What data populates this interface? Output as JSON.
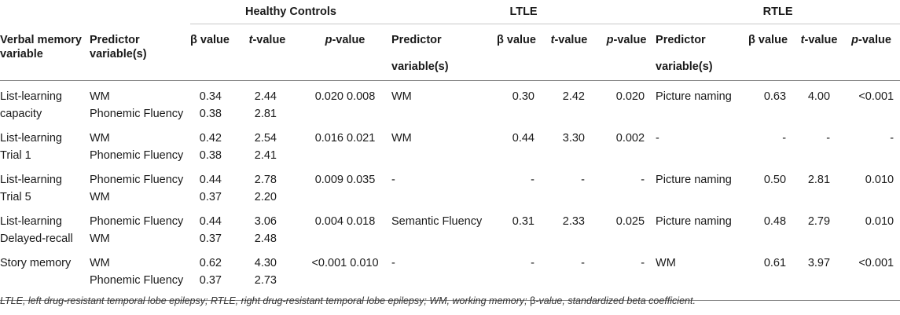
{
  "groups": {
    "hc": "Healthy Controls",
    "ltle": "LTLE",
    "rtle": "RTLE"
  },
  "headers": {
    "verbal_memory_variable": "Verbal memory variable",
    "predictor_variables": "Predictor variable(s)",
    "predictor": "Predictor",
    "variables": "variable(s)",
    "beta": "β value",
    "t": "t",
    "t_suffix": "-value",
    "p": "p",
    "p_suffix": "-value"
  },
  "rows": [
    {
      "variable_1": "List-learning",
      "variable_2": "capacity",
      "hc_pred_1": "WM",
      "hc_pred_2": "Phonemic Fluency",
      "hc_beta_1": "0.34",
      "hc_beta_2": "0.38",
      "hc_t_1": "2.44",
      "hc_t_2": "2.81",
      "hc_p": "0.020 0.008",
      "ltle_pred": "WM",
      "ltle_beta": "0.30",
      "ltle_t": "2.42",
      "ltle_p": "0.020",
      "rtle_pred": "Picture naming",
      "rtle_beta": "0.63",
      "rtle_t": "4.00",
      "rtle_p": "<0.001"
    },
    {
      "variable_1": "List-learning",
      "variable_2": "Trial 1",
      "hc_pred_1": "WM",
      "hc_pred_2": "Phonemic Fluency",
      "hc_beta_1": "0.42",
      "hc_beta_2": "0.38",
      "hc_t_1": "2.54",
      "hc_t_2": "2.41",
      "hc_p": "0.016 0.021",
      "ltle_pred": "WM",
      "ltle_beta": "0.44",
      "ltle_t": "3.30",
      "ltle_p": "0.002",
      "rtle_pred": "-",
      "rtle_beta": "-",
      "rtle_t": "-",
      "rtle_p": "-"
    },
    {
      "variable_1": "List-learning",
      "variable_2": "Trial 5",
      "hc_pred_1": "Phonemic Fluency",
      "hc_pred_2": "WM",
      "hc_beta_1": "0.44",
      "hc_beta_2": "0.37",
      "hc_t_1": "2.78",
      "hc_t_2": "2.20",
      "hc_p": "0.009 0.035",
      "ltle_pred": "-",
      "ltle_beta": "-",
      "ltle_t": "-",
      "ltle_p": "-",
      "rtle_pred": "Picture naming",
      "rtle_beta": "0.50",
      "rtle_t": "2.81",
      "rtle_p": "0.010"
    },
    {
      "variable_1": "List-learning",
      "variable_2": "Delayed-recall",
      "hc_pred_1": "Phonemic Fluency",
      "hc_pred_2": "WM",
      "hc_beta_1": "0.44",
      "hc_beta_2": "0.37",
      "hc_t_1": "3.06",
      "hc_t_2": "2.48",
      "hc_p": "0.004 0.018",
      "ltle_pred": "Semantic Fluency",
      "ltle_beta": "0.31",
      "ltle_t": "2.33",
      "ltle_p": "0.025",
      "rtle_pred": "Picture naming",
      "rtle_beta": "0.48",
      "rtle_t": "2.79",
      "rtle_p": "0.010"
    },
    {
      "variable_1": "Story memory",
      "variable_2": "",
      "hc_pred_1": "WM",
      "hc_pred_2": "Phonemic Fluency",
      "hc_beta_1": "0.62",
      "hc_beta_2": "0.37",
      "hc_t_1": "4.30",
      "hc_t_2": "2.73",
      "hc_p": "<0.001 0.010",
      "ltle_pred": "-",
      "ltle_beta": "-",
      "ltle_t": "-",
      "ltle_p": "-",
      "rtle_pred": "WM",
      "rtle_beta": "0.61",
      "rtle_t": "3.97",
      "rtle_p": "<0.001"
    }
  ],
  "footnote": {
    "text": "LTLE, left drug-resistant temporal lobe epilepsy; RTLE, right drug-resistant temporal lobe epilepsy; WM, working memory; ",
    "beta_symbol": "β",
    "beta_text": "-value, standardized beta coefficient."
  }
}
